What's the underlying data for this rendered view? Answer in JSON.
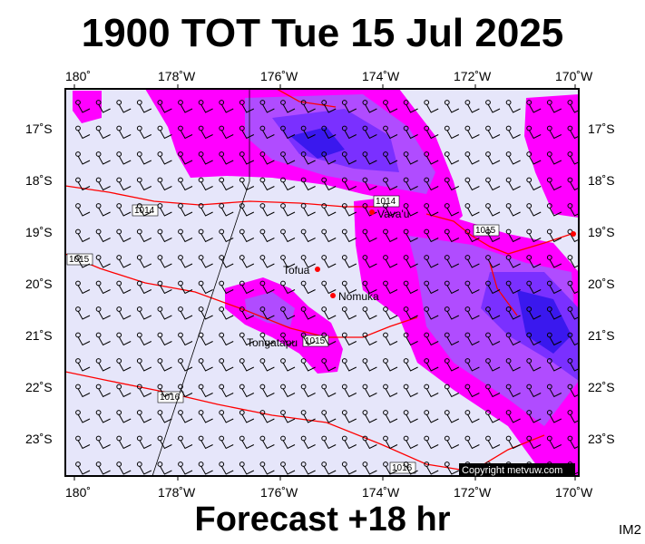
{
  "title": "1900 TOT Tue 15 Jul 2025",
  "footer": "Forecast +18 hr",
  "corner_code": "IM2",
  "copyright": "Copyright metvuw.com",
  "lon_labels": [
    "180˚",
    "178˚W",
    "176˚W",
    "174˚W",
    "172˚W",
    "170˚W"
  ],
  "lat_labels": [
    "17˚S",
    "18˚S",
    "19˚S",
    "20˚S",
    "21˚S",
    "22˚S",
    "23˚S"
  ],
  "places": [
    {
      "name": "Vava'u",
      "lon": -174.0,
      "lat": -18.65
    },
    {
      "name": "Tofua",
      "lon": -175.05,
      "lat": -19.75
    },
    {
      "name": "Nomuka",
      "lon": -174.8,
      "lat": -20.25
    },
    {
      "name": "Tongatapu",
      "lon": -175.2,
      "lat": -21.15
    }
  ],
  "isobar_labels": [
    "1014",
    "1014",
    "1015",
    "1015",
    "1015",
    "1016",
    "1016"
  ],
  "colors": {
    "background": "#e6e6fa",
    "rain_light": "#ff00ff",
    "rain_moderate": "#b04cff",
    "rain_heavy": "#7a30ff",
    "rain_intense": "#3a18ee",
    "isobar": "#ff0000",
    "place_marker": "#ff0000"
  }
}
